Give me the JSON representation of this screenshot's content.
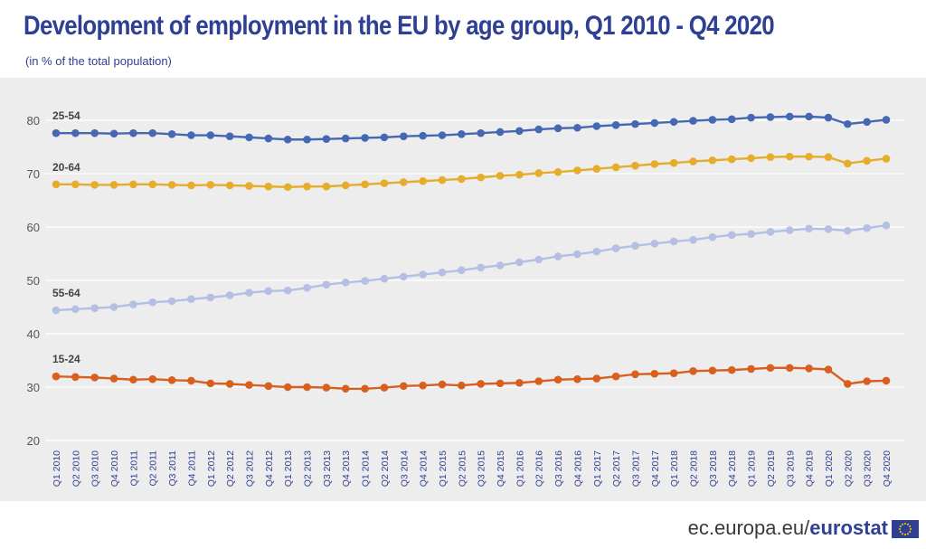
{
  "header": {
    "title": "Development of employment in the EU by age group,  Q1 2010 - Q4 2020",
    "subtitle": "(in % of the total population)"
  },
  "footer": {
    "source_prefix": "ec.europa.eu/",
    "source_brand": "eurostat"
  },
  "colors": {
    "title": "#2e3f94",
    "background": "#ededed",
    "grid": "#ffffff",
    "tick_label": "#2e3f94"
  },
  "chart_data": {
    "type": "line",
    "title": "Development of employment in the EU by age group,  Q1 2010 - Q4 2020",
    "subtitle": "(in % of the total population)",
    "xlabel": "",
    "ylabel": "",
    "ylim": [
      20,
      80
    ],
    "yticks": [
      20,
      30,
      40,
      50,
      60,
      70,
      80
    ],
    "grid": true,
    "x": [
      "Q1 2010",
      "Q2 2010",
      "Q3 2010",
      "Q4 2010",
      "Q1 2011",
      "Q2 2011",
      "Q3 2011",
      "Q4 2011",
      "Q1 2012",
      "Q2 2012",
      "Q3 2012",
      "Q4 2012",
      "Q1 2013",
      "Q2 2013",
      "Q3 2013",
      "Q4 2013",
      "Q1 2014",
      "Q2 2014",
      "Q3 2014",
      "Q4 2014",
      "Q1 2015",
      "Q2 2015",
      "Q3 2015",
      "Q4 2015",
      "Q1 2016",
      "Q2 2016",
      "Q3 2016",
      "Q4 2016",
      "Q1 2017",
      "Q2 2017",
      "Q3 2017",
      "Q4 2017",
      "Q1 2018",
      "Q2 2018",
      "Q3 2018",
      "Q4 2018",
      "Q1 2019",
      "Q2 2019",
      "Q3 2019",
      "Q4 2019",
      "Q1 2020",
      "Q2 2020",
      "Q3 2020",
      "Q4 2020"
    ],
    "series": [
      {
        "name": "25-54",
        "color": "#4668b3",
        "values": [
          77.6,
          77.6,
          77.6,
          77.5,
          77.6,
          77.6,
          77.4,
          77.2,
          77.2,
          77.0,
          76.8,
          76.6,
          76.4,
          76.4,
          76.5,
          76.6,
          76.7,
          76.8,
          77.0,
          77.1,
          77.2,
          77.4,
          77.6,
          77.8,
          78.0,
          78.3,
          78.5,
          78.6,
          78.9,
          79.1,
          79.3,
          79.5,
          79.7,
          79.9,
          80.1,
          80.2,
          80.5,
          80.6,
          80.7,
          80.7,
          80.5,
          79.3,
          79.7,
          80.1
        ]
      },
      {
        "name": "20-64",
        "color": "#e6ac2c",
        "values": [
          68.0,
          68.0,
          67.9,
          67.9,
          68.0,
          68.0,
          67.9,
          67.8,
          67.9,
          67.8,
          67.7,
          67.6,
          67.5,
          67.6,
          67.6,
          67.8,
          68.0,
          68.2,
          68.4,
          68.6,
          68.8,
          69.0,
          69.3,
          69.6,
          69.8,
          70.1,
          70.3,
          70.6,
          70.9,
          71.2,
          71.5,
          71.8,
          72.0,
          72.3,
          72.5,
          72.7,
          72.9,
          73.1,
          73.2,
          73.2,
          73.1,
          71.9,
          72.4,
          72.8
        ]
      },
      {
        "name": "55-64",
        "color": "#b3c0e3",
        "values": [
          44.4,
          44.6,
          44.8,
          45.0,
          45.5,
          45.9,
          46.1,
          46.5,
          46.8,
          47.2,
          47.7,
          48.0,
          48.1,
          48.6,
          49.2,
          49.6,
          49.9,
          50.3,
          50.7,
          51.1,
          51.5,
          51.9,
          52.4,
          52.8,
          53.4,
          53.9,
          54.5,
          54.9,
          55.4,
          56.0,
          56.5,
          56.9,
          57.3,
          57.6,
          58.1,
          58.5,
          58.7,
          59.1,
          59.4,
          59.7,
          59.6,
          59.3,
          59.8,
          60.3
        ]
      },
      {
        "name": "15-24",
        "color": "#d95f1e",
        "values": [
          32.0,
          31.9,
          31.8,
          31.6,
          31.4,
          31.5,
          31.3,
          31.2,
          30.7,
          30.6,
          30.4,
          30.2,
          30.0,
          30.0,
          29.9,
          29.7,
          29.7,
          29.9,
          30.2,
          30.3,
          30.5,
          30.3,
          30.6,
          30.7,
          30.8,
          31.1,
          31.4,
          31.5,
          31.6,
          32.0,
          32.4,
          32.5,
          32.6,
          33.0,
          33.1,
          33.2,
          33.4,
          33.6,
          33.6,
          33.5,
          33.3,
          30.6,
          31.1,
          31.2
        ]
      }
    ]
  }
}
